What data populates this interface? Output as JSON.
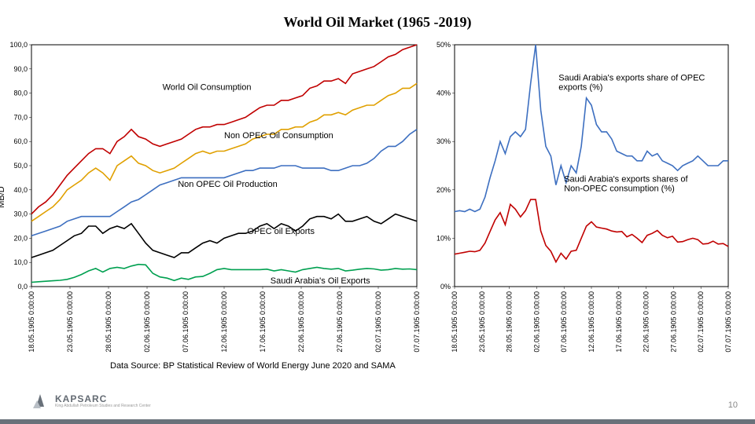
{
  "title": "World Oil Market (1965 -2019)",
  "source": "Data Source: BP Statistical Review of World Energy June 2020 and SAMA",
  "pageNum": "10",
  "logoText": "KAPSARC",
  "leftChart": {
    "ylabel": "MB/D",
    "ylim": [
      0,
      100
    ],
    "ytick_step": 10,
    "ytick_suffix": ",0",
    "background": "#ffffff",
    "border_color": "#000000",
    "xTicks": [
      "18.05.1905 0:00:00",
      "23.05.1905 0:00:00",
      "28.05.1905 0:00:00",
      "02.06.1905 0:00:00",
      "07.06.1905 0:00:00",
      "12.06.1905 0:00:00",
      "17.06.1905 0:00:00",
      "22.06.1905 0:00:00",
      "27.06.1905 0:00:00",
      "02.07.1905 0:00:00",
      "07.07.1905 0:00:00"
    ],
    "series": [
      {
        "name": "World Oil Consumption",
        "color": "#c00000",
        "labelAt": [
          0.34,
          80
        ],
        "data": [
          30,
          33,
          35,
          38,
          42,
          46,
          49,
          52,
          55,
          57,
          57,
          55,
          60,
          62,
          65,
          62,
          61,
          59,
          58,
          59,
          60,
          61,
          63,
          65,
          66,
          66,
          67,
          67,
          68,
          69,
          70,
          72,
          74,
          75,
          75,
          77,
          77,
          78,
          79,
          82,
          83,
          85,
          85,
          86,
          84,
          88,
          89,
          90,
          91,
          93,
          95,
          96,
          98,
          99,
          100
        ]
      },
      {
        "name": "Non OPEC Oil Consumption",
        "color": "#e0a000",
        "labelAt": [
          0.5,
          60
        ],
        "data": [
          27,
          29,
          31,
          33,
          36,
          40,
          42,
          44,
          47,
          49,
          47,
          44,
          50,
          52,
          54,
          51,
          50,
          48,
          47,
          48,
          49,
          51,
          53,
          55,
          56,
          55,
          56,
          56,
          57,
          58,
          59,
          61,
          62,
          63,
          63,
          65,
          65,
          66,
          66,
          68,
          69,
          71,
          71,
          72,
          71,
          73,
          74,
          75,
          75,
          77,
          79,
          80,
          82,
          82,
          84
        ]
      },
      {
        "name": "Non OPEC Oil Production",
        "color": "#3d6fc0",
        "labelAt": [
          0.38,
          40
        ],
        "data": [
          21,
          22,
          23,
          24,
          25,
          27,
          28,
          29,
          29,
          29,
          29,
          29,
          31,
          33,
          35,
          36,
          38,
          40,
          42,
          43,
          44,
          45,
          45,
          45,
          45,
          45,
          45,
          45,
          46,
          47,
          48,
          48,
          49,
          49,
          49,
          50,
          50,
          50,
          49,
          49,
          49,
          49,
          48,
          48,
          49,
          50,
          50,
          51,
          53,
          56,
          58,
          58,
          60,
          63,
          65
        ]
      },
      {
        "name": "OPEC oil Exports",
        "color": "#000000",
        "labelAt": [
          0.56,
          20.5
        ],
        "data": [
          12,
          13,
          14,
          15,
          17,
          19,
          21,
          22,
          25,
          25,
          22,
          24,
          25,
          24,
          26,
          22,
          18,
          15,
          14,
          13,
          12,
          14,
          14,
          16,
          18,
          19,
          18,
          20,
          21,
          22,
          22,
          23,
          25,
          26,
          24,
          26,
          25,
          23,
          25,
          28,
          29,
          29,
          28,
          30,
          27,
          27,
          28,
          29,
          27,
          26,
          28,
          30,
          29,
          28,
          27
        ]
      },
      {
        "name": "Saudi Arabia's Oil Exports",
        "color": "#00a050",
        "labelAt": [
          0.62,
          0
        ],
        "data": [
          1.8,
          2.0,
          2.2,
          2.4,
          2.6,
          3.0,
          3.8,
          5.0,
          6.5,
          7.5,
          6.0,
          7.5,
          8.0,
          7.5,
          8.5,
          9.2,
          9.0,
          5.5,
          4.0,
          3.5,
          2.5,
          3.5,
          3.0,
          4.0,
          4.2,
          5.5,
          7.0,
          7.5,
          7.0,
          7.0,
          7.0,
          7.0,
          7.0,
          7.2,
          6.5,
          7.0,
          6.5,
          6.0,
          7.0,
          7.5,
          8.0,
          7.5,
          7.2,
          7.5,
          6.5,
          6.8,
          7.2,
          7.5,
          7.3,
          6.8,
          7.0,
          7.5,
          7.2,
          7.3,
          7.0
        ]
      }
    ]
  },
  "rightChart": {
    "ylim": [
      0,
      0.5
    ],
    "ytick_step": 0.1,
    "background": "#ffffff",
    "border_color": "#000000",
    "xTicks": [
      "18.05.1905 0:00:00",
      "23.05.1905 0:00:00",
      "28.05.1905 0:00:00",
      "02.06.1905 0:00:00",
      "07.06.1905 0:00:00",
      "12.06.1905 0:00:00",
      "17.06.1905 0:00:00",
      "22.06.1905 0:00:00",
      "27.06.1905 0:00:00",
      "02.07.1905 0:00:00",
      "07.07.1905 0:00:00"
    ],
    "series": [
      {
        "name": "Saudi Arabia's exports share of OPEC exports (%)",
        "color": "#3d6fc0",
        "labelAt": [
          0.38,
          0.42
        ],
        "data": [
          0.155,
          0.157,
          0.155,
          0.16,
          0.155,
          0.16,
          0.185,
          0.225,
          0.26,
          0.3,
          0.275,
          0.31,
          0.32,
          0.31,
          0.325,
          0.42,
          0.5,
          0.365,
          0.29,
          0.27,
          0.21,
          0.25,
          0.215,
          0.25,
          0.235,
          0.29,
          0.39,
          0.375,
          0.335,
          0.32,
          0.32,
          0.305,
          0.28,
          0.275,
          0.27,
          0.27,
          0.26,
          0.26,
          0.28,
          0.27,
          0.275,
          0.26,
          0.255,
          0.25,
          0.24,
          0.25,
          0.255,
          0.26,
          0.27,
          0.26,
          0.25,
          0.25,
          0.25,
          0.26,
          0.26
        ]
      },
      {
        "name": "Saudi Arabia's exports shares of Non-OPEC consumption (%)",
        "color": "#c00000",
        "labelAt": [
          0.4,
          0.21
        ],
        "data": [
          0.067,
          0.069,
          0.071,
          0.073,
          0.072,
          0.075,
          0.09,
          0.114,
          0.138,
          0.153,
          0.128,
          0.17,
          0.16,
          0.144,
          0.157,
          0.18,
          0.18,
          0.115,
          0.085,
          0.073,
          0.051,
          0.069,
          0.057,
          0.073,
          0.075,
          0.1,
          0.125,
          0.134,
          0.123,
          0.121,
          0.119,
          0.115,
          0.113,
          0.114,
          0.103,
          0.108,
          0.1,
          0.091,
          0.106,
          0.11,
          0.116,
          0.106,
          0.101,
          0.104,
          0.092,
          0.093,
          0.097,
          0.1,
          0.097,
          0.088,
          0.089,
          0.094,
          0.088,
          0.089,
          0.083
        ]
      }
    ]
  }
}
